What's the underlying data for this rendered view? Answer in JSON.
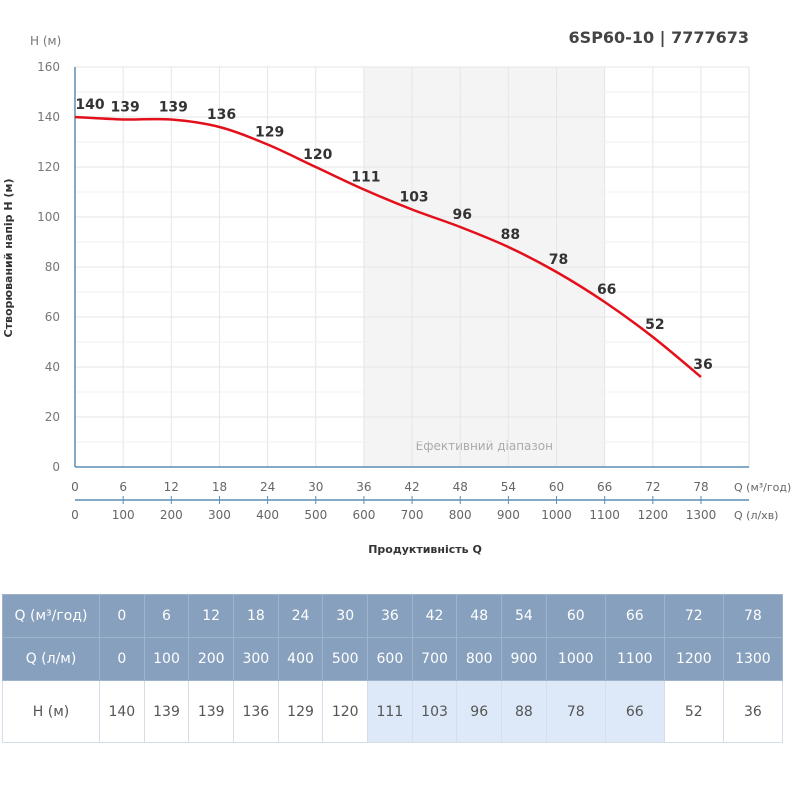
{
  "title": "6SP60-10 | 7777673",
  "chart_data": {
    "type": "line",
    "title": "6SP60-10 | 7777673",
    "ylabel": "Створюваний напір H (м)",
    "yunit": "H (м)",
    "xlabel": "Продуктивність Q",
    "x_unit": "Q (м³/год)",
    "x2_unit": "Q (л/хв)",
    "ylim": [
      0,
      160
    ],
    "yticks": [
      0,
      20,
      40,
      60,
      80,
      100,
      120,
      140,
      160
    ],
    "x": [
      0,
      6,
      12,
      18,
      24,
      30,
      36,
      42,
      48,
      54,
      60,
      66,
      72,
      78
    ],
    "x2": [
      0,
      100,
      200,
      300,
      400,
      500,
      600,
      700,
      800,
      900,
      1000,
      1100,
      1200,
      1300
    ],
    "series": [
      {
        "values": [
          140,
          139,
          139,
          136,
          129,
          120,
          111,
          103,
          96,
          88,
          78,
          66,
          52,
          36
        ],
        "color": "#e3101b"
      }
    ],
    "efficient_range": {
      "label": "Ефективний діапазон",
      "from": 36,
      "to": 66
    },
    "grid": true
  },
  "table": {
    "row1_label": "Q (м³/год)",
    "row2_label": "Q (л/м)",
    "row3_label": "H (м)"
  }
}
